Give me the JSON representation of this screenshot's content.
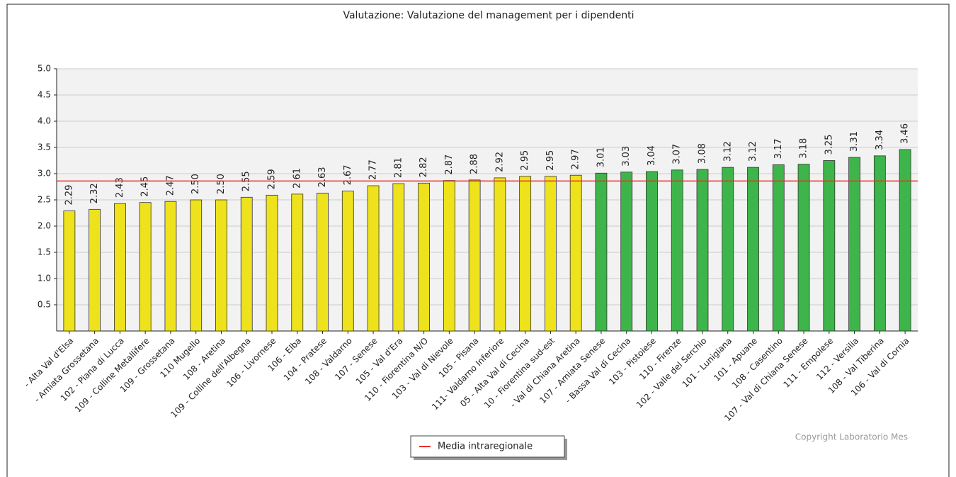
{
  "chart_data": {
    "type": "bar",
    "title": "Valutazione: Valutazione del management per i dipendenti",
    "categories": [
      "- Alta Val d'Elsa",
      "- Amiata Grossetana",
      "102 - Piana di Lucca",
      "109 - Colline Metallifere",
      "109 - Grossetana",
      "110 Mugello",
      "108 - Aretina",
      "109 - Colline dell'Albegna",
      "106 - Livornese",
      "106 - Elba",
      "104 - Pratese",
      "108 - Valdarno",
      "107 - Senese",
      "105 - Val d'Era",
      "110 - Fiorentina N/O",
      "103 - Val di Nievole",
      "105 - Pisana",
      "111- Valdarno Inferiore",
      "05 - Alta Val di Cecina",
      "10 - Fiorentina sud-est",
      "- Val di Chiana Aretina",
      "107 - Amiata Senese",
      "- Bassa Val di Cecina",
      "103 - Pistoiese",
      "110 - Firenze",
      "102 - Valle del Serchio",
      "101 - Lunigiana",
      "101 - Apuane",
      "108 - Casentino",
      "107 - Val di Chiana Senese",
      "111 - Empolese",
      "112 - Versilia",
      "108 - Val Tiberina",
      "106 - Val di Cornia"
    ],
    "values": [
      2.29,
      2.32,
      2.43,
      2.45,
      2.47,
      2.5,
      2.5,
      2.55,
      2.59,
      2.61,
      2.63,
      2.67,
      2.77,
      2.81,
      2.82,
      2.87,
      2.88,
      2.92,
      2.95,
      2.95,
      2.97,
      3.01,
      3.03,
      3.04,
      3.07,
      3.08,
      3.12,
      3.12,
      3.17,
      3.18,
      3.25,
      3.31,
      3.34,
      3.46
    ],
    "value_labels": [
      "2.29",
      "2.32",
      "2.43",
      "2.45",
      "2.47",
      "2.50",
      "2.50",
      "2.55",
      "2.59",
      "2.61",
      "2.63",
      "2.67",
      "2.77",
      "2.81",
      "2.82",
      "2.87",
      "2.88",
      "2.92",
      "2.95",
      "2.95",
      "2.97",
      "3.01",
      "3.03",
      "3.04",
      "3.07",
      "3.08",
      "3.12",
      "3.12",
      "3.17",
      "3.18",
      "3.25",
      "3.31",
      "3.34",
      "3.46"
    ],
    "colors": [
      "#eee21c",
      "#eee21c",
      "#eee21c",
      "#eee21c",
      "#eee21c",
      "#eee21c",
      "#eee21c",
      "#eee21c",
      "#eee21c",
      "#eee21c",
      "#eee21c",
      "#eee21c",
      "#eee21c",
      "#eee21c",
      "#eee21c",
      "#eee21c",
      "#eee21c",
      "#eee21c",
      "#eee21c",
      "#eee21c",
      "#eee21c",
      "#3db54a",
      "#3db54a",
      "#3db54a",
      "#3db54a",
      "#3db54a",
      "#3db54a",
      "#3db54a",
      "#3db54a",
      "#3db54a",
      "#3db54a",
      "#3db54a",
      "#3db54a",
      "#3db54a"
    ],
    "ylim": [
      0,
      5
    ],
    "yticks": [
      0.5,
      {
        "value": 1,
        "label": "1.0"
      },
      1.5,
      {
        "value": 2,
        "label": "2.0"
      },
      2.5,
      {
        "value": 3,
        "label": "3.0"
      },
      3.5,
      {
        "value": 4,
        "label": "4.0"
      },
      4.5,
      {
        "value": 5,
        "label": "5.0"
      }
    ],
    "grid": true,
    "reference_line": {
      "name": "Media intraregionale",
      "value": 2.86,
      "color": "#e8302a"
    },
    "annotation": "Copyright Laboratorio Mes"
  }
}
